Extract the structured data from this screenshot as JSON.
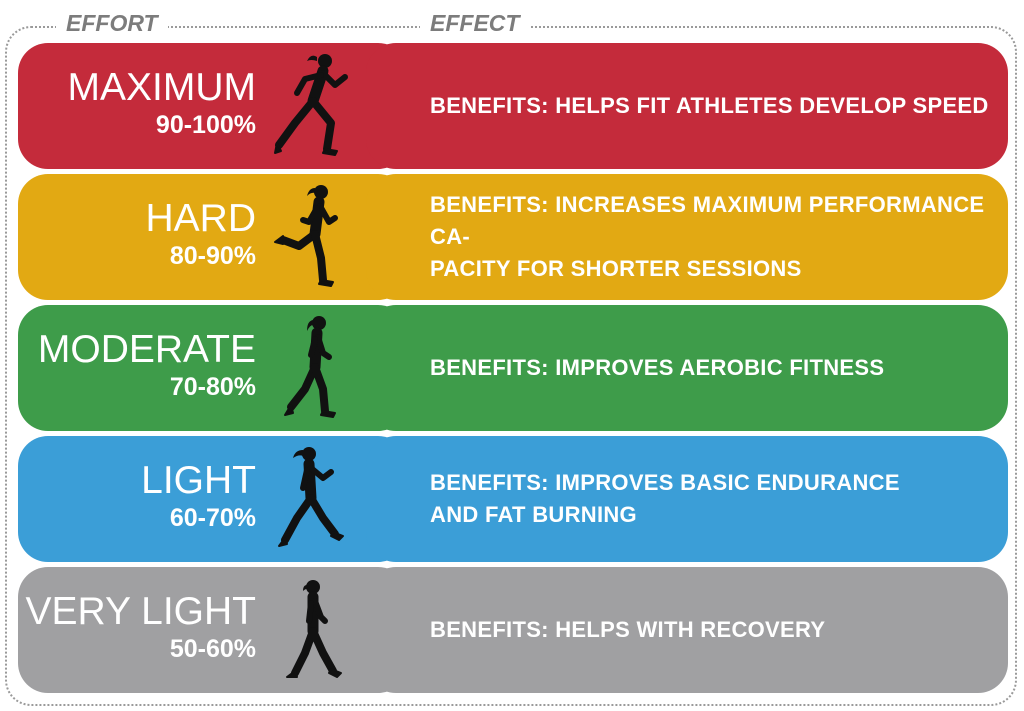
{
  "headers": {
    "effort": "EFFORT",
    "effect": "EFFECT"
  },
  "colors": {
    "maximum": "#c42b3b",
    "hard": "#e2a913",
    "moderate": "#3e9c4a",
    "light": "#3b9ed7",
    "very_light": "#a0a0a2"
  },
  "zones": [
    {
      "label": "MAXIMUM",
      "range": "90-100%",
      "benefit": "BENEFITS: HELPS FIT ATHLETES DEVELOP SPEED",
      "icon": "sprinting-runner-icon"
    },
    {
      "label": "HARD",
      "range": "80-90%",
      "benefit": "BENEFITS: INCREASES MAXIMUM PERFORMANCE CA-\nPACITY FOR SHORTER SESSIONS",
      "icon": "running-person-icon"
    },
    {
      "label": "MODERATE",
      "range": "70-80%",
      "benefit": "BENEFITS: IMPROVES AEROBIC FITNESS",
      "icon": "jogging-person-icon"
    },
    {
      "label": "LIGHT",
      "range": "60-70%",
      "benefit": "BENEFITS: IMPROVES BASIC ENDURANCE\nAND FAT BURNING",
      "icon": "brisk-walking-person-icon"
    },
    {
      "label": "VERY LIGHT",
      "range": "50-60%",
      "benefit": "BENEFITS: HELPS WITH RECOVERY",
      "icon": "walking-person-icon"
    }
  ]
}
